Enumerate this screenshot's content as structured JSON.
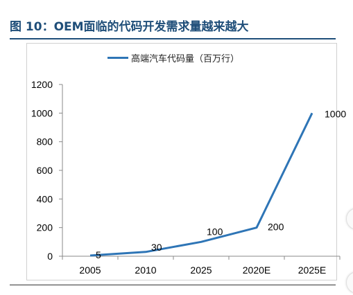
{
  "title": "图 10：OEM面临的代码开发需求量越来越大",
  "colors": {
    "series": "#2e75b6",
    "title": "#1f4e79",
    "axis": "#888888"
  },
  "chart_data": {
    "type": "line",
    "categories": [
      "2005",
      "2010",
      "2025",
      "2020E",
      "2025E"
    ],
    "series": [
      {
        "name": "高端汽车代码量（百万行）",
        "values": [
          5,
          30,
          100,
          200,
          1000
        ]
      }
    ],
    "data_labels": [
      "5",
      "30",
      "100",
      "200",
      "1000"
    ],
    "yticks": [
      "0",
      "200",
      "400",
      "600",
      "800",
      "1000",
      "1200"
    ],
    "ylim": [
      0,
      1200
    ],
    "grid": false,
    "legend_position": "top"
  }
}
